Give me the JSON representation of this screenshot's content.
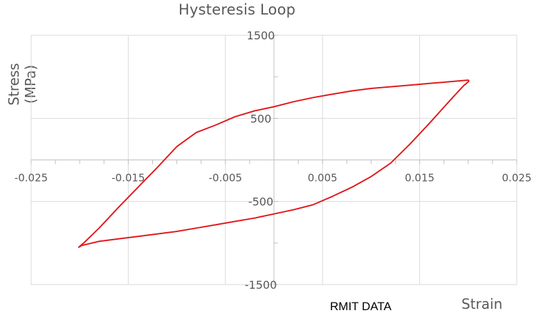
{
  "chart_data": {
    "type": "line",
    "title": "Hysteresis Loop",
    "xlabel": "Strain",
    "ylabel": "Stress (MPa)",
    "source_label": "RMIT DATA",
    "xlim": [
      -0.025,
      0.025
    ],
    "ylim": [
      -1500,
      1500
    ],
    "x_ticks": [
      "-0.025",
      "-0.015",
      "-0.005",
      "0.005",
      "0.015",
      "0.025"
    ],
    "y_ticks": [
      "1500",
      "500",
      "-500",
      "-1500"
    ],
    "grid": true,
    "line_color": "#e0191c",
    "series": [
      {
        "x": [
          0.0201,
          0.0195,
          0.018,
          0.016,
          0.014,
          0.012,
          0.01,
          0.008,
          0.006,
          0.004,
          0.002,
          0.0,
          -0.002,
          -0.004,
          -0.006,
          -0.008,
          -0.01,
          -0.012,
          -0.014,
          -0.016,
          -0.018,
          -0.0198,
          -0.0201,
          -0.0195,
          -0.018,
          -0.016,
          -0.014,
          -0.012,
          -0.01,
          -0.008,
          -0.006,
          -0.004,
          -0.002,
          0.0,
          0.002,
          0.004,
          0.006,
          0.008,
          0.01,
          0.012,
          0.014,
          0.016,
          0.018,
          0.02,
          0.0201
        ],
        "y": [
          950,
          890,
          700,
          440,
          190,
          -40,
          -200,
          -330,
          -440,
          -540,
          -600,
          -650,
          -700,
          -740,
          -780,
          -820,
          -860,
          -890,
          -920,
          -950,
          -980,
          -1030,
          -1050,
          -990,
          -820,
          -570,
          -330,
          -90,
          160,
          330,
          420,
          520,
          590,
          640,
          700,
          750,
          790,
          830,
          860,
          880,
          900,
          920,
          940,
          960,
          950
        ]
      }
    ]
  }
}
